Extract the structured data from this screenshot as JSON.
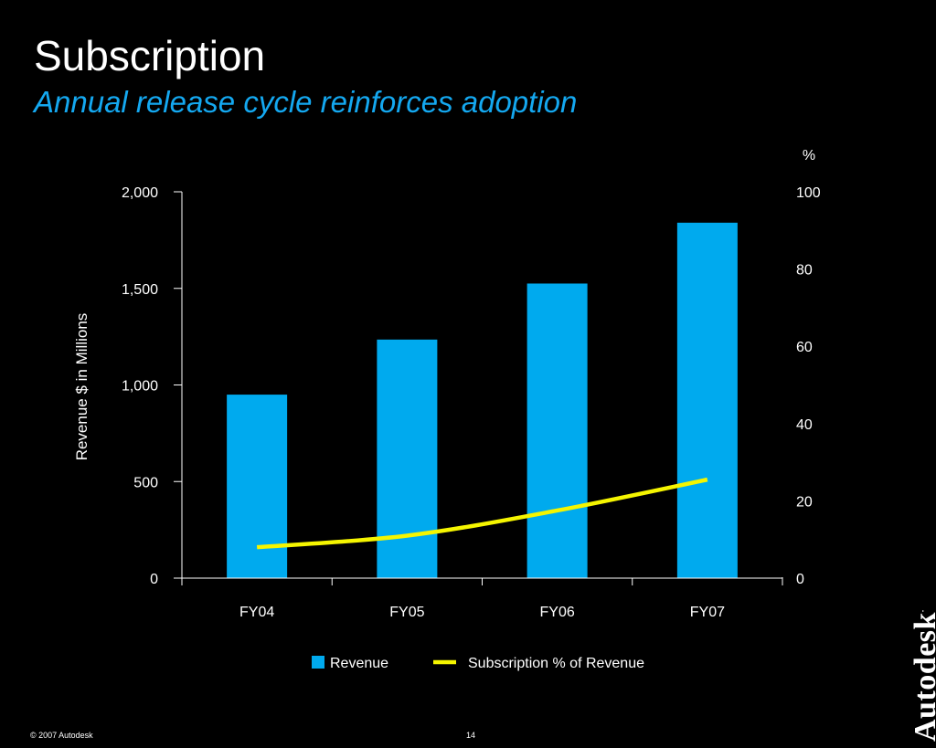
{
  "slide": {
    "title": "Subscription",
    "subtitle": "Annual release cycle reinforces adoption",
    "footer": "© 2007 Autodesk",
    "page_number": "14",
    "brand": "Autodesk",
    "brand_mark": "."
  },
  "colors": {
    "bar": "#00aaee",
    "line": "#f5f500",
    "subtitle": "#14a8f0",
    "axis": "#ffffff",
    "background": "#000000"
  },
  "chart_data": {
    "type": "bar",
    "categories": [
      "FY04",
      "FY05",
      "FY06",
      "FY07"
    ],
    "series": [
      {
        "name": "Revenue",
        "type": "bar",
        "axis": "left",
        "values": [
          950,
          1235,
          1525,
          1840
        ]
      },
      {
        "name": "Subscription % of Revenue",
        "type": "line",
        "axis": "right",
        "values": [
          8,
          11,
          17.5,
          25.5
        ]
      }
    ],
    "ylabel": "Revenue $ in Millions",
    "ylim": [
      0,
      2000
    ],
    "yticks": [
      0,
      500,
      1000,
      1500,
      2000
    ],
    "ytick_labels": [
      "0",
      "500",
      "1,000",
      "1,500",
      "2,000"
    ],
    "y2label": "%",
    "y2lim": [
      0,
      100
    ],
    "y2ticks": [
      0,
      20,
      40,
      60,
      80,
      100
    ],
    "y2tick_labels": [
      "0",
      "20",
      "40",
      "60",
      "80",
      "100"
    ],
    "grid": false,
    "legend": "bottom"
  }
}
